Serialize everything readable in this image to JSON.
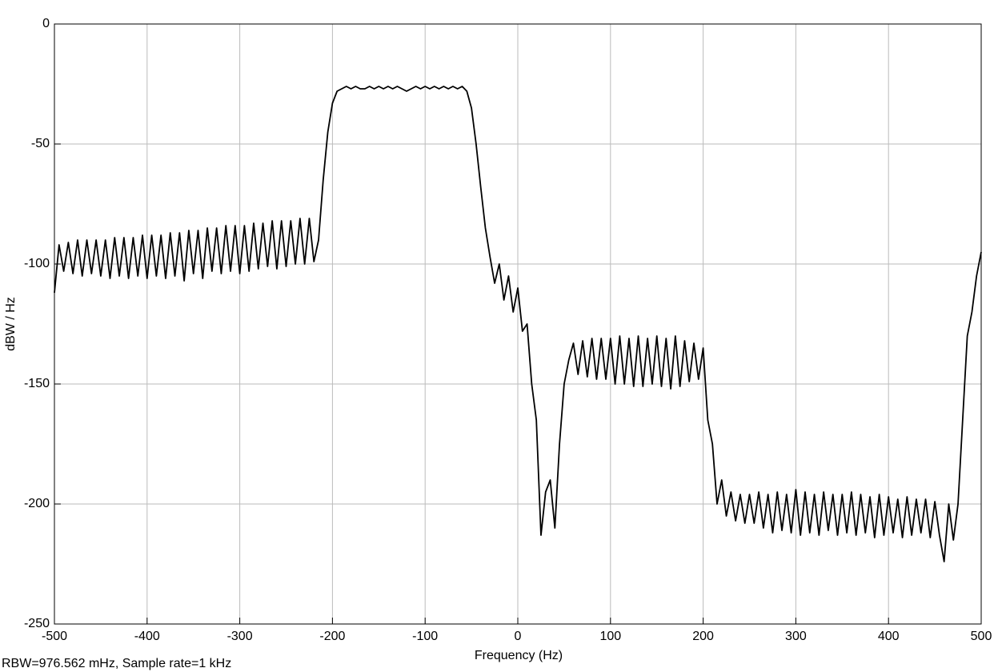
{
  "chart_data": {
    "type": "line",
    "xlabel": "Frequency (Hz)",
    "ylabel": "dBW / Hz",
    "annotation": "RBW=976.562 mHz, Sample rate=1 kHz",
    "x": [
      -500,
      -495,
      -490,
      -485,
      -480,
      -475,
      -470,
      -465,
      -460,
      -455,
      -450,
      -445,
      -440,
      -435,
      -430,
      -425,
      -420,
      -415,
      -410,
      -405,
      -400,
      -395,
      -390,
      -385,
      -380,
      -375,
      -370,
      -365,
      -360,
      -355,
      -350,
      -345,
      -340,
      -335,
      -330,
      -325,
      -320,
      -315,
      -310,
      -305,
      -300,
      -295,
      -290,
      -285,
      -280,
      -275,
      -270,
      -265,
      -260,
      -255,
      -250,
      -245,
      -240,
      -235,
      -230,
      -225,
      -220,
      -215,
      -210,
      -205,
      -200,
      -195,
      -190,
      -185,
      -180,
      -175,
      -170,
      -165,
      -160,
      -155,
      -150,
      -145,
      -140,
      -135,
      -130,
      -125,
      -120,
      -115,
      -110,
      -105,
      -100,
      -95,
      -90,
      -85,
      -80,
      -75,
      -70,
      -65,
      -60,
      -55,
      -50,
      -45,
      -40,
      -35,
      -30,
      -25,
      -20,
      -15,
      -10,
      -5,
      0,
      5,
      10,
      15,
      20,
      25,
      30,
      35,
      40,
      45,
      50,
      55,
      60,
      65,
      70,
      75,
      80,
      85,
      90,
      95,
      100,
      105,
      110,
      115,
      120,
      125,
      130,
      135,
      140,
      145,
      150,
      155,
      160,
      165,
      170,
      175,
      180,
      185,
      190,
      195,
      200,
      205,
      210,
      215,
      220,
      225,
      230,
      235,
      240,
      245,
      250,
      255,
      260,
      265,
      270,
      275,
      280,
      285,
      290,
      295,
      300,
      305,
      310,
      315,
      320,
      325,
      330,
      335,
      340,
      345,
      350,
      355,
      360,
      365,
      370,
      375,
      380,
      385,
      390,
      395,
      400,
      405,
      410,
      415,
      420,
      425,
      430,
      435,
      440,
      445,
      450,
      455,
      460,
      465,
      470,
      475,
      480,
      485,
      490,
      495,
      500
    ],
    "series": [
      {
        "color": "#000000",
        "values": [
          -112,
          -92,
          -103,
          -91,
          -104,
          -90,
          -105,
          -90,
          -104,
          -90,
          -105,
          -90,
          -106,
          -89,
          -105,
          -89,
          -106,
          -89,
          -105,
          -88,
          -106,
          -88,
          -105,
          -88,
          -106,
          -87,
          -105,
          -87,
          -107,
          -86,
          -104,
          -86,
          -106,
          -85,
          -103,
          -85,
          -104,
          -84,
          -103,
          -84,
          -104,
          -84,
          -103,
          -83,
          -102,
          -83,
          -101,
          -82,
          -102,
          -82,
          -101,
          -82,
          -100,
          -81,
          -100,
          -81,
          -99,
          -90,
          -65,
          -45,
          -33,
          -28,
          -27,
          -26,
          -27,
          -26,
          -27,
          -27,
          -26,
          -27,
          -26,
          -27,
          -26,
          -27,
          -26,
          -27,
          -28,
          -27,
          -26,
          -27,
          -26,
          -27,
          -26,
          -27,
          -26,
          -27,
          -26,
          -27,
          -26,
          -28,
          -35,
          -50,
          -68,
          -85,
          -97,
          -108,
          -100,
          -115,
          -105,
          -120,
          -110,
          -128,
          -125,
          -150,
          -165,
          -213,
          -195,
          -190,
          -210,
          -175,
          -150,
          -140,
          -133,
          -146,
          -132,
          -147,
          -131,
          -148,
          -131,
          -148,
          -131,
          -150,
          -130,
          -150,
          -131,
          -151,
          -130,
          -151,
          -131,
          -150,
          -130,
          -151,
          -131,
          -152,
          -130,
          -151,
          -132,
          -149,
          -133,
          -148,
          -135,
          -165,
          -175,
          -200,
          -190,
          -205,
          -195,
          -207,
          -196,
          -208,
          -196,
          -208,
          -195,
          -210,
          -196,
          -212,
          -195,
          -211,
          -196,
          -212,
          -194,
          -213,
          -195,
          -212,
          -196,
          -213,
          -195,
          -211,
          -196,
          -213,
          -196,
          -212,
          -195,
          -213,
          -196,
          -212,
          -197,
          -214,
          -196,
          -213,
          -197,
          -212,
          -198,
          -214,
          -197,
          -213,
          -198,
          -212,
          -198,
          -214,
          -199,
          -213,
          -224,
          -200,
          -215,
          -200,
          -165,
          -130,
          -120,
          -105,
          -95
        ]
      }
    ],
    "xlim": [
      -500,
      500
    ],
    "xticks": [
      -500,
      -400,
      -300,
      -200,
      -100,
      0,
      100,
      200,
      300,
      400,
      500
    ],
    "ylim": [
      -250,
      0
    ],
    "yticks": [
      -250,
      -200,
      -150,
      -100,
      -50,
      0
    ],
    "grid": true
  }
}
